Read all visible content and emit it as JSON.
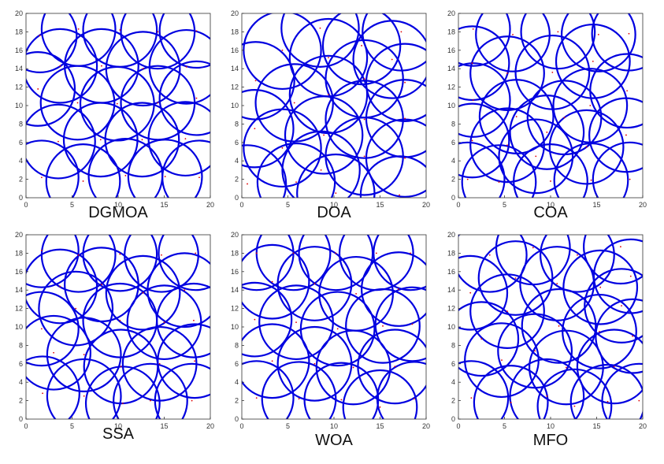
{
  "chart_data": [
    {
      "type": "scatter",
      "title": "DGMOA",
      "radius": 4,
      "color": "#0000e0",
      "dot_color": "#e00000",
      "x": [
        1.5,
        5.7,
        10.2,
        14.3,
        18.5,
        3.7,
        8.2,
        12.7,
        17.4,
        1.3,
        5.6,
        9.9,
        14.3,
        18.5,
        3.5,
        8.1,
        12.6,
        17.3,
        1.7,
        6.2,
        10.8,
        15.1,
        18.8
      ],
      "y": [
        17.6,
        18.3,
        18.2,
        18,
        18.1,
        14.3,
        14.3,
        14,
        14.2,
        11.8,
        10.3,
        10.2,
        10.3,
        10.8,
        6.1,
        6.3,
        6.3,
        6.4,
        2.2,
        1.8,
        2.4,
        2.3,
        2.2
      ],
      "xlim": [
        0,
        20
      ],
      "ylim": [
        0,
        20
      ],
      "xticks": [
        0,
        5,
        10,
        15,
        20
      ],
      "yticks": [
        0,
        2,
        4,
        6,
        8,
        10,
        12,
        14,
        16,
        18,
        20
      ]
    },
    {
      "type": "scatter",
      "title": "DOA",
      "radius": 4.2,
      "color": "#0000e0",
      "dot_color": "#e00000",
      "x": [
        0.6,
        1.5,
        1.4,
        4.4,
        4.4,
        5.9,
        5.7,
        8.5,
        9.4,
        8.9,
        9.4,
        8.6,
        10.2,
        13,
        13.3,
        13.3,
        13.3,
        17.3,
        17.7,
        17.7,
        17.7,
        17.1,
        16.3
      ],
      "y": [
        1.5,
        12.7,
        7.5,
        16,
        5.4,
        1.7,
        10.3,
        18.4,
        15.2,
        6.8,
        11.2,
        3,
        0.5,
        16.5,
        12.9,
        8.5,
        4.5,
        18,
        12.5,
        8.6,
        4.3,
        0.3,
        15
      ],
      "xlim": [
        0,
        20
      ],
      "ylim": [
        0,
        20
      ],
      "xticks": [
        0,
        5,
        10,
        15,
        20
      ],
      "yticks": [
        0,
        2,
        4,
        6,
        8,
        10,
        12,
        14,
        16,
        18,
        20
      ]
    },
    {
      "type": "scatter",
      "title": "COA",
      "radius": 4,
      "color": "#0000e0",
      "dot_color": "#e00000",
      "x": [
        1.6,
        5.9,
        10.8,
        15.2,
        18.5,
        1.5,
        1.6,
        5.3,
        10.2,
        14.6,
        18.3,
        6.3,
        9.6,
        11.5,
        14.3,
        1.5,
        5.3,
        8.4,
        13.9,
        18.2,
        1,
        4.4,
        10,
        14.4,
        18.6
      ],
      "y": [
        18.3,
        17.7,
        18,
        17.7,
        17.8,
        14.6,
        10.6,
        13.5,
        13.6,
        14.8,
        11.6,
        8.8,
        7.1,
        8.7,
        10,
        6.2,
        5.7,
        4.5,
        5.5,
        6.8,
        2,
        1.7,
        1.8,
        1.9,
        2
      ],
      "xlim": [
        0,
        20
      ],
      "ylim": [
        0,
        20
      ],
      "xticks": [
        0,
        5,
        10,
        15,
        20
      ],
      "yticks": [
        0,
        2,
        4,
        6,
        8,
        10,
        12,
        14,
        16,
        18,
        20
      ]
    },
    {
      "type": "scatter",
      "title": "SSA",
      "radius": 4,
      "color": "#0000e0",
      "dot_color": "#e00000",
      "x": [
        1.7,
        5.7,
        10.2,
        14.7,
        18.4,
        3.7,
        8.2,
        12.7,
        17.2,
        1.7,
        5.4,
        10.2,
        15,
        18.2,
        3,
        6.3,
        10.3,
        14.5,
        18.3,
        1.8,
        6.3,
        10.5,
        13.5,
        18
      ],
      "y": [
        18.3,
        17.8,
        17.9,
        17.8,
        18,
        14.4,
        14.6,
        13.7,
        14,
        9.8,
        12,
        10.7,
        10.5,
        10.7,
        7.2,
        7,
        5.7,
        6,
        6.3,
        2.8,
        2.5,
        1.7,
        2,
        2
      ],
      "xlim": [
        0,
        20
      ],
      "ylim": [
        0,
        20
      ],
      "xticks": [
        0,
        5,
        10,
        15,
        20
      ],
      "yticks": [
        0,
        2,
        4,
        6,
        8,
        10,
        12,
        14,
        16,
        18,
        20
      ]
    },
    {
      "type": "scatter",
      "title": "WOA",
      "radius": 4,
      "color": "#0000e0",
      "dot_color": "#e00000",
      "x": [
        1.6,
        5.6,
        10.2,
        14.6,
        18.3,
        3.3,
        7.9,
        12.4,
        17,
        1.4,
        5.9,
        10.4,
        15.3,
        18.5,
        3.3,
        7.9,
        12.1,
        16.6,
        1.6,
        6.2,
        10.8,
        15,
        18.7
      ],
      "y": [
        18,
        18,
        18,
        18,
        18,
        14.9,
        14.7,
        13.6,
        14.1,
        10.8,
        10.5,
        9.8,
        10.1,
        10.3,
        6.3,
        6,
        5.6,
        5.7,
        2.3,
        2.2,
        2.1,
        1.3,
        2.2
      ],
      "xlim": [
        0,
        20
      ],
      "ylim": [
        0,
        20
      ],
      "xticks": [
        0,
        5,
        10,
        15,
        20
      ],
      "yticks": [
        0,
        2,
        4,
        6,
        8,
        10,
        12,
        14,
        16,
        18,
        20
      ]
    },
    {
      "type": "scatter",
      "title": "MFO",
      "radius": 4,
      "color": "#0000e0",
      "dot_color": "#e00000",
      "x": [
        3.4,
        8.1,
        12.9,
        17.6,
        1.3,
        6.2,
        10.7,
        15.4,
        18.7,
        2.5,
        5.3,
        10.9,
        15.3,
        18.9,
        4.7,
        8.3,
        11.7,
        16.9,
        1.4,
        5.7,
        9.6,
        12.6,
        16.2,
        19.6,
        17.7
      ],
      "y": [
        17.8,
        18.6,
        17.8,
        18.7,
        13.7,
        15.3,
        14.7,
        14.3,
        15.5,
        8.7,
        11.7,
        10.1,
        9.5,
        9,
        6.4,
        7.4,
        5.6,
        5.7,
        2.3,
        1.8,
        2.5,
        1.4,
        1.9,
        2,
        12.3
      ],
      "xlim": [
        0,
        20
      ],
      "ylim": [
        0,
        20
      ],
      "xticks": [
        0,
        5,
        10,
        15,
        20
      ],
      "yticks": [
        0,
        2,
        4,
        6,
        8,
        10,
        12,
        14,
        16,
        18,
        20
      ]
    }
  ]
}
